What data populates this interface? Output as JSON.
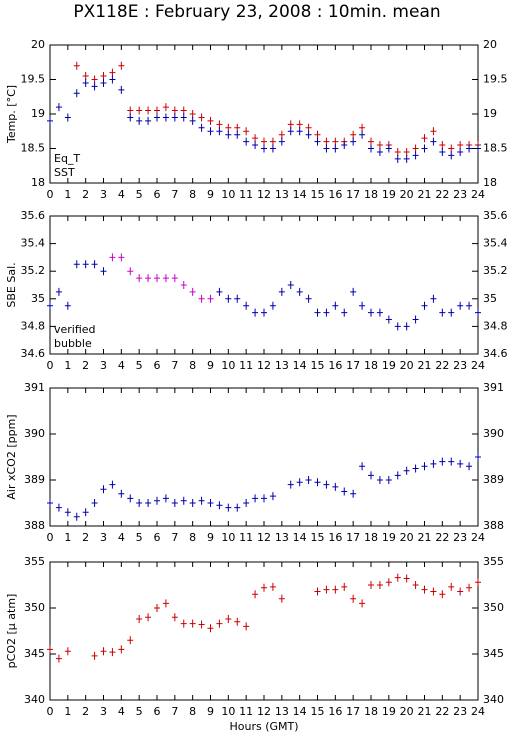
{
  "chart_data": [
    {
      "type": "scatter",
      "title": "PX118E : February 23, 2008 : 10min. mean",
      "ylabel": "Temp. [°C]",
      "legend": "lower left",
      "x": [
        0,
        0.5,
        1,
        1.5,
        2,
        2.5,
        3,
        3.5,
        4,
        4.5,
        5,
        5.5,
        6,
        6.5,
        7,
        7.5,
        8,
        8.5,
        9,
        9.5,
        10,
        10.5,
        11,
        11.5,
        12,
        12.5,
        13,
        13.5,
        14,
        14.5,
        15,
        15.5,
        16,
        16.5,
        17,
        17.5,
        18,
        18.5,
        19,
        19.5,
        20,
        20.5,
        21,
        21.5,
        22,
        22.5,
        23,
        23.5,
        24
      ],
      "xlim": [
        0,
        24
      ],
      "xticks": [
        0,
        1,
        2,
        3,
        4,
        5,
        6,
        7,
        8,
        9,
        10,
        11,
        12,
        13,
        14,
        15,
        16,
        17,
        18,
        19,
        20,
        21,
        22,
        23,
        24
      ],
      "ylim": [
        18,
        20
      ],
      "yticks": [
        18,
        18.5,
        19,
        19.5,
        20
      ],
      "series": [
        {
          "name": "Eq_T",
          "color": "#cc0000",
          "values": [
            null,
            null,
            null,
            19.7,
            19.55,
            19.5,
            19.55,
            19.6,
            19.7,
            19.05,
            19.05,
            19.05,
            19.05,
            19.1,
            19.05,
            19.05,
            19.0,
            18.95,
            18.9,
            18.85,
            18.8,
            18.8,
            18.75,
            18.65,
            18.6,
            18.6,
            18.7,
            18.85,
            18.85,
            18.8,
            18.7,
            18.6,
            18.6,
            18.6,
            18.7,
            18.8,
            18.6,
            18.55,
            18.55,
            18.45,
            18.45,
            18.5,
            18.65,
            18.75,
            18.55,
            18.5,
            18.55,
            18.55,
            18.55
          ]
        },
        {
          "name": "SST",
          "color": "#0000aa",
          "values": [
            18.9,
            19.1,
            18.95,
            19.3,
            19.45,
            19.4,
            19.45,
            19.5,
            19.35,
            18.95,
            18.9,
            18.9,
            18.95,
            18.95,
            18.95,
            18.95,
            18.9,
            18.8,
            18.75,
            18.75,
            18.7,
            18.7,
            18.6,
            18.55,
            18.5,
            18.5,
            18.6,
            18.75,
            18.75,
            18.7,
            18.6,
            18.5,
            18.5,
            18.55,
            18.6,
            18.7,
            18.5,
            18.45,
            18.5,
            18.35,
            18.35,
            18.4,
            18.5,
            18.6,
            18.45,
            18.4,
            18.45,
            18.5,
            18.5
          ]
        }
      ]
    },
    {
      "type": "scatter",
      "ylabel": "SBE Sal.",
      "legend": "lower left",
      "x": [
        0,
        0.5,
        1,
        1.5,
        2,
        2.5,
        3,
        3.5,
        4,
        4.5,
        5,
        5.5,
        6,
        6.5,
        7,
        7.5,
        8,
        8.5,
        9,
        9.5,
        10,
        10.5,
        11,
        11.5,
        12,
        12.5,
        13,
        13.5,
        14,
        14.5,
        15,
        15.5,
        16,
        16.5,
        17,
        17.5,
        18,
        18.5,
        19,
        19.5,
        20,
        20.5,
        21,
        21.5,
        22,
        22.5,
        23,
        23.5,
        24
      ],
      "xlim": [
        0,
        24
      ],
      "xticks": [
        0,
        1,
        2,
        3,
        4,
        5,
        6,
        7,
        8,
        9,
        10,
        11,
        12,
        13,
        14,
        15,
        16,
        17,
        18,
        19,
        20,
        21,
        22,
        23,
        24
      ],
      "ylim": [
        34.6,
        35.6
      ],
      "yticks": [
        34.6,
        34.8,
        35,
        35.2,
        35.4,
        35.6
      ],
      "series": [
        {
          "name": "verified",
          "color": "#0000aa",
          "values": [
            34.95,
            35.05,
            34.95,
            35.25,
            35.25,
            35.25,
            35.2,
            null,
            null,
            null,
            null,
            null,
            null,
            null,
            null,
            null,
            null,
            null,
            null,
            35.05,
            35.0,
            35.0,
            34.95,
            34.9,
            34.9,
            34.95,
            35.05,
            35.1,
            35.05,
            35.0,
            34.9,
            34.9,
            34.95,
            34.9,
            35.05,
            34.95,
            34.9,
            34.9,
            34.85,
            34.8,
            34.8,
            34.85,
            34.95,
            35.0,
            34.9,
            34.9,
            34.95,
            34.95,
            34.9
          ]
        },
        {
          "name": "bubble",
          "color": "#cc00cc",
          "values": [
            null,
            null,
            null,
            null,
            null,
            null,
            null,
            35.3,
            35.3,
            35.2,
            35.15,
            35.15,
            35.15,
            35.15,
            35.15,
            35.1,
            35.05,
            35.0,
            35.0,
            null,
            null,
            null,
            null,
            null,
            null,
            null,
            null,
            null,
            null,
            null,
            null,
            null,
            null,
            null,
            null,
            null,
            null,
            null,
            null,
            null,
            null,
            null,
            null,
            null,
            null,
            null,
            null,
            null,
            null
          ]
        }
      ]
    },
    {
      "type": "scatter",
      "ylabel": "Air xCO2 [ppm]",
      "x": [
        0,
        0.5,
        1,
        1.5,
        2,
        2.5,
        3,
        3.5,
        4,
        4.5,
        5,
        5.5,
        6,
        6.5,
        7,
        7.5,
        8,
        8.5,
        9,
        9.5,
        10,
        10.5,
        11,
        11.5,
        12,
        12.5,
        13,
        13.5,
        14,
        14.5,
        15,
        15.5,
        16,
        16.5,
        17,
        17.5,
        18,
        18.5,
        19,
        19.5,
        20,
        20.5,
        21,
        21.5,
        22,
        22.5,
        23,
        23.5,
        24
      ],
      "xlim": [
        0,
        24
      ],
      "xticks": [
        0,
        1,
        2,
        3,
        4,
        5,
        6,
        7,
        8,
        9,
        10,
        11,
        12,
        13,
        14,
        15,
        16,
        17,
        18,
        19,
        20,
        21,
        22,
        23,
        24
      ],
      "ylim": [
        388,
        391
      ],
      "yticks": [
        388,
        389,
        390,
        391
      ],
      "series": [
        {
          "color": "#0000aa",
          "values": [
            388.5,
            388.4,
            388.3,
            388.2,
            388.3,
            388.5,
            388.8,
            388.9,
            388.7,
            388.6,
            388.5,
            388.5,
            388.55,
            388.6,
            388.5,
            388.55,
            388.5,
            388.55,
            388.5,
            388.45,
            388.4,
            388.4,
            388.5,
            388.6,
            388.6,
            388.65,
            null,
            388.9,
            388.95,
            389.0,
            388.95,
            388.9,
            388.85,
            388.75,
            388.7,
            389.3,
            389.1,
            389.0,
            389.0,
            389.1,
            389.2,
            389.25,
            389.3,
            389.35,
            389.4,
            389.4,
            389.35,
            389.3,
            389.5
          ]
        }
      ]
    },
    {
      "type": "scatter",
      "ylabel": "pCO2 [μ atm]",
      "xlabel": "Hours (GMT)",
      "x": [
        0,
        0.5,
        1,
        1.5,
        2,
        2.5,
        3,
        3.5,
        4,
        4.5,
        5,
        5.5,
        6,
        6.5,
        7,
        7.5,
        8,
        8.5,
        9,
        9.5,
        10,
        10.5,
        11,
        11.5,
        12,
        12.5,
        13,
        13.5,
        14,
        14.5,
        15,
        15.5,
        16,
        16.5,
        17,
        17.5,
        18,
        18.5,
        19,
        19.5,
        20,
        20.5,
        21,
        21.5,
        22,
        22.5,
        23,
        23.5,
        24
      ],
      "xlim": [
        0,
        24
      ],
      "xticks": [
        0,
        1,
        2,
        3,
        4,
        5,
        6,
        7,
        8,
        9,
        10,
        11,
        12,
        13,
        14,
        15,
        16,
        17,
        18,
        19,
        20,
        21,
        22,
        23,
        24
      ],
      "ylim": [
        340,
        355
      ],
      "yticks": [
        340,
        345,
        350,
        355
      ],
      "series": [
        {
          "color": "#cc0000",
          "values": [
            345.5,
            344.5,
            345.3,
            null,
            null,
            344.8,
            345.3,
            345.2,
            345.5,
            346.5,
            348.8,
            349,
            350,
            350.5,
            349,
            348.3,
            348.3,
            348.2,
            347.8,
            348.3,
            348.8,
            348.5,
            348,
            351.5,
            352.2,
            352.3,
            351,
            null,
            null,
            null,
            351.8,
            352,
            352,
            352.3,
            351,
            350.5,
            352.5,
            352.5,
            352.8,
            353.3,
            353.2,
            352.5,
            352,
            351.8,
            351.5,
            352.3,
            351.8,
            352.2,
            352.8
          ]
        }
      ]
    }
  ]
}
